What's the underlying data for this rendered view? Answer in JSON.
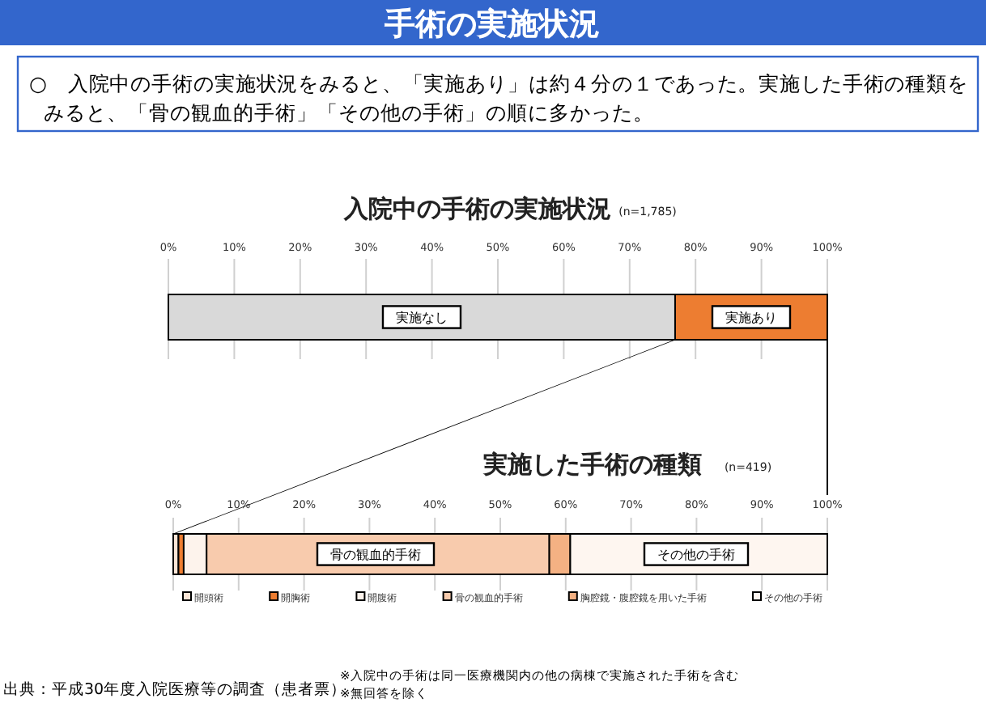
{
  "chart_data": [
    {
      "type": "other",
      "title": "手術の実施状況",
      "annotations": [
        "○　入院中の手術の実施状況をみると、「実施あり」は約４分の１であった。実施した手術の種類を",
        "みると、「骨の観血的手術」「その他の手術」の順に多かった。",
        "出典：平成30年度入院医療等の調査（患者票）",
        "※入院中の手術は同一医療機関内の他の病棟で実施された手術を含む",
        "※無回答を除く"
      ]
    },
    {
      "type": "bar",
      "orientation": "horizontal",
      "stacked": true,
      "title": "入院中の手術の実施状況",
      "subtitle": "(n=1,785)",
      "categories": [
        null
      ],
      "xlim": [
        0,
        100
      ],
      "xticks": [
        {
          "value": 0,
          "label": "0%"
        },
        {
          "value": 10,
          "label": "10%"
        },
        {
          "value": 20,
          "label": "20%"
        },
        {
          "value": 30,
          "label": "30%"
        },
        {
          "value": 40,
          "label": "40%"
        },
        {
          "value": 50,
          "label": "50%"
        },
        {
          "value": 60,
          "label": "60%"
        },
        {
          "value": 70,
          "label": "70%"
        },
        {
          "value": 80,
          "label": "80%"
        },
        {
          "value": 90,
          "label": "90%"
        },
        {
          "value": 100,
          "label": "100%"
        }
      ],
      "grid": "x",
      "legend": false,
      "series": [
        {
          "name": "実施なし",
          "color": "#d9d9d9",
          "values": [
            76.9
          ]
        },
        {
          "name": "実施あり",
          "color": "#ed7d31",
          "values": [
            23.1
          ]
        }
      ]
    },
    {
      "type": "bar",
      "orientation": "horizontal",
      "stacked": true,
      "title": "実施した手術の種類",
      "subtitle": "(n=419)",
      "categories": [
        null
      ],
      "xlim": [
        0,
        100
      ],
      "xticks": [
        {
          "value": 0,
          "label": "0%"
        },
        {
          "value": 10,
          "label": "10%"
        },
        {
          "value": 20,
          "label": "20%"
        },
        {
          "value": 30,
          "label": "30%"
        },
        {
          "value": 40,
          "label": "40%"
        },
        {
          "value": 50,
          "label": "50%"
        },
        {
          "value": 60,
          "label": "60%"
        },
        {
          "value": 70,
          "label": "70%"
        },
        {
          "value": 80,
          "label": "80%"
        },
        {
          "value": 90,
          "label": "90%"
        },
        {
          "value": 100,
          "label": "100%"
        }
      ],
      "grid": "x",
      "legend": "bottom",
      "annotations": [
        "骨の観血的手術",
        "その他の手術"
      ],
      "series": [
        {
          "name": "開頭術",
          "color": "#fbe5d6",
          "values": [
            0.8
          ]
        },
        {
          "name": "開胸術",
          "color": "#ed7d31",
          "values": [
            0.8
          ]
        },
        {
          "name": "開腹術",
          "color": "#fdf3ec",
          "values": [
            3.5
          ]
        },
        {
          "name": "骨の観血的手術",
          "color": "#f8cbad",
          "values": [
            52.4
          ]
        },
        {
          "name": "胸腔鏡・腹腔鏡を用いた手術",
          "color": "#f4b183",
          "values": [
            3.2
          ]
        },
        {
          "name": "その他の手術",
          "color": "#fef6f0",
          "values": [
            39.3
          ]
        }
      ]
    }
  ]
}
